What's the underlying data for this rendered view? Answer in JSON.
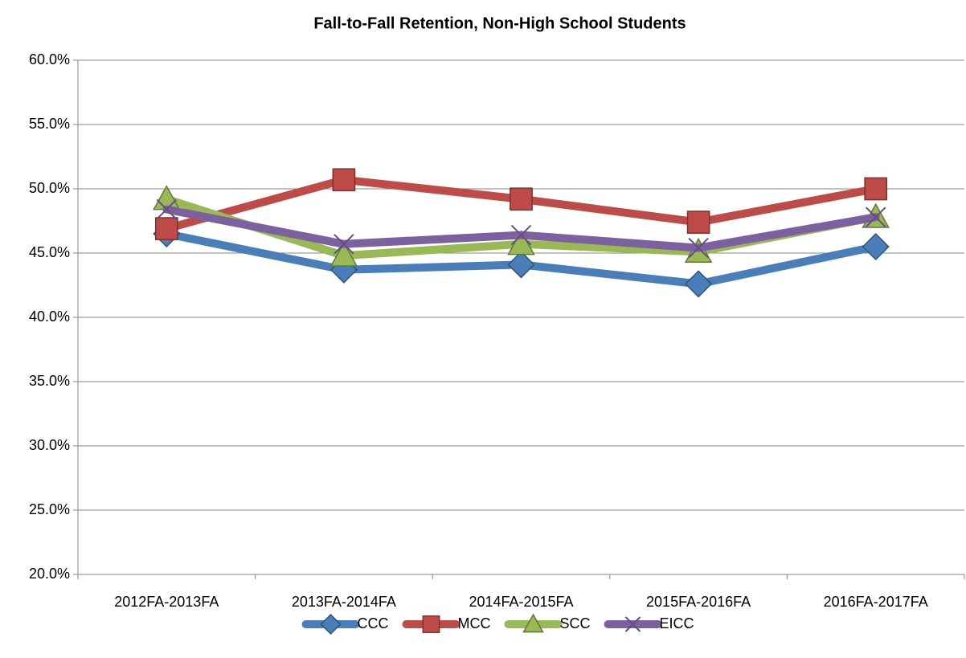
{
  "chart_data": {
    "type": "line",
    "title": "Fall-to-Fall Retention, Non-High School Students",
    "categories": [
      "2012FA-2013FA",
      "2013FA-2014FA",
      "2014FA-2015FA",
      "2015FA-2016FA",
      "2016FA-2017FA"
    ],
    "series": [
      {
        "name": "CCC",
        "color": "#4a7ebb",
        "marker": "diamond",
        "values": [
          46.5,
          43.7,
          44.1,
          42.6,
          45.5
        ]
      },
      {
        "name": "MCC",
        "color": "#be4b48",
        "marker": "square",
        "values": [
          46.9,
          50.7,
          49.2,
          47.4,
          50.0
        ]
      },
      {
        "name": "SCC",
        "color": "#98b954",
        "marker": "triangle",
        "values": [
          49.2,
          44.8,
          45.7,
          45.1,
          47.8
        ]
      },
      {
        "name": "EICC",
        "color": "#7d60a0",
        "marker": "x",
        "values": [
          48.4,
          45.7,
          46.4,
          45.4,
          47.8
        ]
      }
    ],
    "ylim": [
      20,
      60
    ],
    "yticks": [
      {
        "value": 20,
        "label": "20.0%"
      },
      {
        "value": 25,
        "label": "25.0%"
      },
      {
        "value": 30,
        "label": "30.0%"
      },
      {
        "value": 35,
        "label": "35.0%"
      },
      {
        "value": 40,
        "label": "40.0%"
      },
      {
        "value": 45,
        "label": "45.0%"
      },
      {
        "value": 50,
        "label": "50.0%"
      },
      {
        "value": 55,
        "label": "55.0%"
      },
      {
        "value": 60,
        "label": "60.0%"
      }
    ],
    "grid": true,
    "legend": "bottom"
  }
}
